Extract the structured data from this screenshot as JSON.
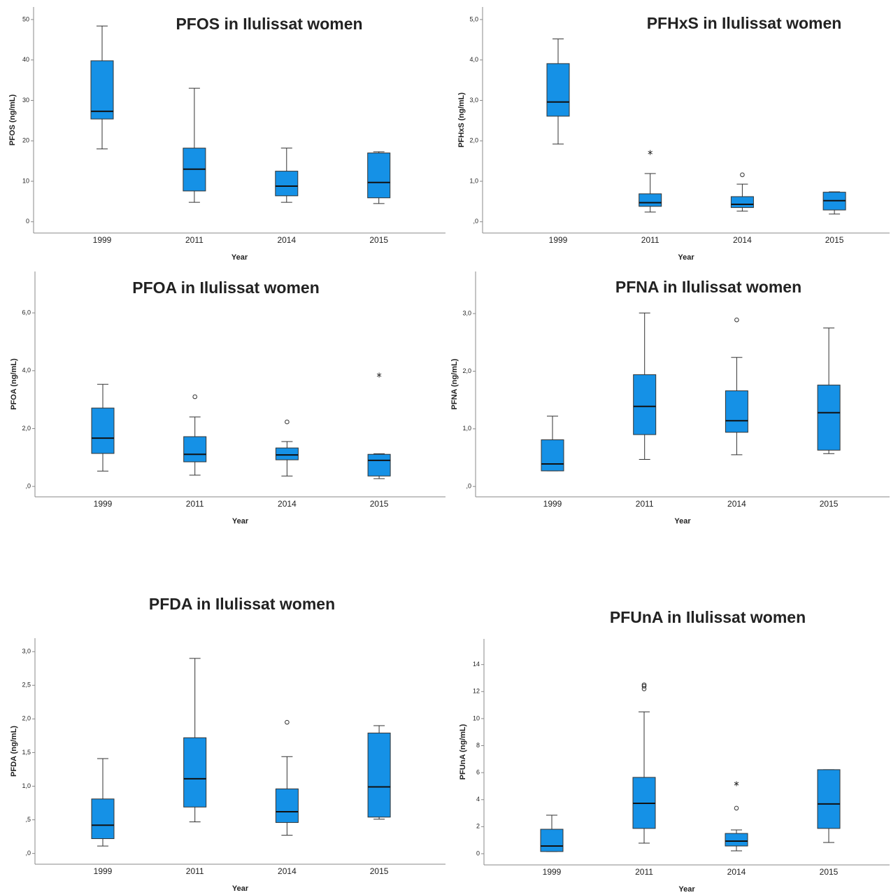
{
  "chart_data": [
    {
      "type": "box",
      "title": "PFOS in Ilulissat women",
      "x_label": "Year",
      "y_label": "PFOS (ng/mL)",
      "categories": [
        "1999",
        "2011",
        "2014",
        "2015"
      ],
      "color": "#1591e6",
      "ylim": [
        -2.8,
        53.1
      ],
      "yticks": [
        0,
        10,
        20,
        30,
        40,
        50
      ],
      "boxes": [
        {
          "whisker_low": 18.0,
          "q1": 25.4,
          "median": 27.3,
          "q3": 39.8,
          "whisker_high": 48.4
        },
        {
          "whisker_low": 4.8,
          "q1": 7.6,
          "median": 13.0,
          "q3": 18.2,
          "whisker_high": 33.0
        },
        {
          "whisker_low": 4.8,
          "q1": 6.4,
          "median": 8.8,
          "q3": 12.5,
          "whisker_high": 18.2
        },
        {
          "whisker_low": 4.5,
          "q1": 5.9,
          "median": 9.7,
          "q3": 17.0,
          "whisker_high": 17.3
        }
      ]
    },
    {
      "type": "box",
      "title": "PFHxS in Ilulissat women",
      "x_label": "Year",
      "y_label": "PFHxS (ng/mL)",
      "categories": [
        "1999",
        "2011",
        "2014",
        "2015"
      ],
      "color": "#1591e6",
      "ylim": [
        -0.28,
        5.31
      ],
      "yticks": [
        {
          "value": 0,
          "label": ",0"
        },
        {
          "value": 1,
          "label": "1,0"
        },
        {
          "value": 2,
          "label": "2,0"
        },
        {
          "value": 3,
          "label": "3,0"
        },
        {
          "value": 4,
          "label": "4,0"
        },
        {
          "value": 5,
          "label": "5,0"
        }
      ],
      "boxes": [
        {
          "whisker_low": 1.92,
          "q1": 2.61,
          "median": 2.96,
          "q3": 3.91,
          "whisker_high": 4.52
        },
        {
          "whisker_low": 0.24,
          "q1": 0.38,
          "median": 0.47,
          "q3": 0.69,
          "whisker_high": 1.19,
          "extremes": [
            1.71
          ]
        },
        {
          "whisker_low": 0.26,
          "q1": 0.35,
          "median": 0.43,
          "q3": 0.62,
          "whisker_high": 0.93,
          "outliers": [
            1.16
          ]
        },
        {
          "whisker_low": 0.19,
          "q1": 0.29,
          "median": 0.52,
          "q3": 0.73,
          "whisker_high": 0.74
        }
      ]
    },
    {
      "type": "box",
      "title": "PFOA in Ilulissat women",
      "x_label": "Year",
      "y_label": "PFOA (ng/mL)",
      "categories": [
        "1999",
        "2011",
        "2014",
        "2015"
      ],
      "color": "#1591e6",
      "ylim": [
        -0.36,
        7.43
      ],
      "yticks": [
        {
          "value": 0,
          "label": ",0"
        },
        {
          "value": 2,
          "label": "2,0"
        },
        {
          "value": 4,
          "label": "4,0"
        },
        {
          "value": 6,
          "label": "6,0"
        }
      ],
      "boxes": [
        {
          "whisker_low": 0.53,
          "q1": 1.14,
          "median": 1.67,
          "q3": 2.71,
          "whisker_high": 3.53
        },
        {
          "whisker_low": 0.39,
          "q1": 0.85,
          "median": 1.11,
          "q3": 1.72,
          "whisker_high": 2.4,
          "outliers": [
            3.1
          ]
        },
        {
          "whisker_low": 0.36,
          "q1": 0.92,
          "median": 1.09,
          "q3": 1.33,
          "whisker_high": 1.55,
          "outliers": [
            2.23
          ]
        },
        {
          "whisker_low": 0.27,
          "q1": 0.36,
          "median": 0.9,
          "q3": 1.11,
          "whisker_high": 1.13,
          "extremes": [
            3.85
          ]
        }
      ]
    },
    {
      "type": "box",
      "title": "PFNA in Ilulissat women",
      "x_label": "Year",
      "y_label": "PFNA (ng/mL)",
      "categories": [
        "1999",
        "2011",
        "2014",
        "2015"
      ],
      "color": "#1591e6",
      "ylim": [
        -0.18,
        3.73
      ],
      "yticks": [
        {
          "value": 0,
          "label": ",0"
        },
        {
          "value": 1,
          "label": "1,0"
        },
        {
          "value": 2,
          "label": "2,0"
        },
        {
          "value": 3,
          "label": "3,0"
        }
      ],
      "boxes": [
        {
          "whisker_low": 0.27,
          "q1": 0.27,
          "median": 0.39,
          "q3": 0.81,
          "whisker_high": 1.22
        },
        {
          "whisker_low": 0.47,
          "q1": 0.9,
          "median": 1.39,
          "q3": 1.94,
          "whisker_high": 3.01
        },
        {
          "whisker_low": 0.55,
          "q1": 0.94,
          "median": 1.14,
          "q3": 1.66,
          "whisker_high": 2.24,
          "outliers": [
            2.89
          ]
        },
        {
          "whisker_low": 0.57,
          "q1": 0.63,
          "median": 1.28,
          "q3": 1.76,
          "whisker_high": 2.75
        }
      ]
    },
    {
      "type": "box",
      "title": "PFDA in Ilulissat women",
      "x_label": "Year",
      "y_label": "PFDA (ng/mL)",
      "categories": [
        "1999",
        "2011",
        "2014",
        "2015"
      ],
      "color": "#1591e6",
      "ylim": [
        -0.16,
        3.2
      ],
      "yticks": [
        {
          "value": 0,
          "label": ",0"
        },
        {
          "value": 0.5,
          "label": ",5"
        },
        {
          "value": 1,
          "label": "1,0"
        },
        {
          "value": 1.5,
          "label": "1,5"
        },
        {
          "value": 2,
          "label": "2,0"
        },
        {
          "value": 2.5,
          "label": "2,5"
        },
        {
          "value": 3,
          "label": "3,0"
        }
      ],
      "boxes": [
        {
          "whisker_low": 0.11,
          "q1": 0.22,
          "median": 0.42,
          "q3": 0.81,
          "whisker_high": 1.41
        },
        {
          "whisker_low": 0.47,
          "q1": 0.69,
          "median": 1.11,
          "q3": 1.72,
          "whisker_high": 2.9
        },
        {
          "whisker_low": 0.27,
          "q1": 0.46,
          "median": 0.62,
          "q3": 0.96,
          "whisker_high": 1.44,
          "outliers": [
            1.95
          ]
        },
        {
          "whisker_low": 0.51,
          "q1": 0.54,
          "median": 0.99,
          "q3": 1.79,
          "whisker_high": 1.9
        }
      ]
    },
    {
      "type": "box",
      "title": "PFUnA in Ilulissat women",
      "x_label": "Year",
      "y_label": "PFUnA (ng/mL)",
      "categories": [
        "1999",
        "2011",
        "2014",
        "2015"
      ],
      "color": "#1591e6",
      "ylim": [
        -0.83,
        15.9
      ],
      "yticks": [
        0,
        2,
        4,
        6,
        8,
        10,
        12,
        14
      ],
      "boxes": [
        {
          "whisker_low": 0.16,
          "q1": 0.16,
          "median": 0.57,
          "q3": 1.81,
          "whisker_high": 2.85
        },
        {
          "whisker_low": 0.78,
          "q1": 1.87,
          "median": 3.73,
          "q3": 5.65,
          "whisker_high": 10.5,
          "outliers": [
            12.5,
            12.4,
            12.2
          ]
        },
        {
          "whisker_low": 0.21,
          "q1": 0.57,
          "median": 0.93,
          "q3": 1.5,
          "whisker_high": 1.76,
          "outliers": [
            3.37
          ],
          "extremes": [
            5.18
          ]
        },
        {
          "whisker_low": 0.83,
          "q1": 1.87,
          "median": 3.68,
          "q3": 6.22,
          "whisker_high": 6.22
        }
      ]
    }
  ]
}
